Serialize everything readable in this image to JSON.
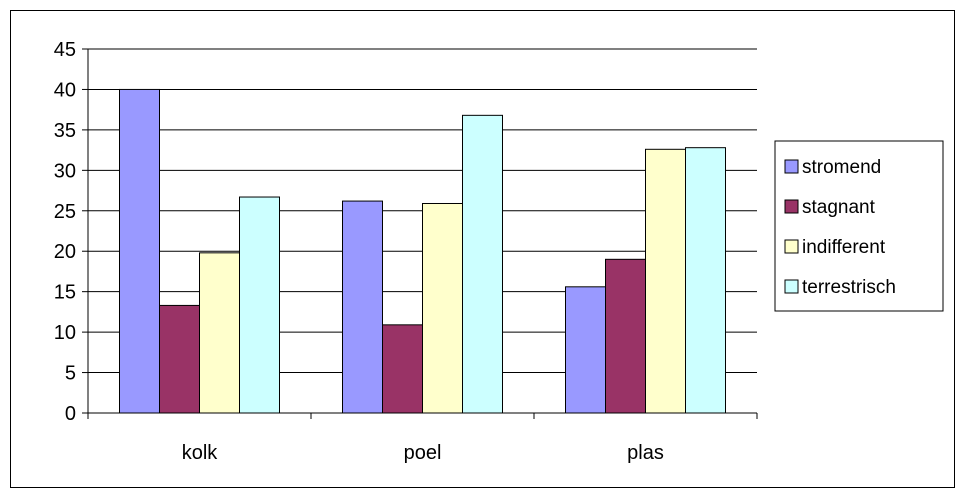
{
  "chart_data": {
    "type": "bar",
    "categories": [
      "kolk",
      "poel",
      "plas"
    ],
    "ylim": [
      0,
      45
    ],
    "y_ticks": [
      0,
      5,
      10,
      15,
      20,
      25,
      30,
      35,
      40,
      45
    ],
    "gridlines": true,
    "legend_position": "right",
    "series": [
      {
        "name": "stromend",
        "color": "#9999ff",
        "values": [
          40,
          26.2,
          15.6
        ]
      },
      {
        "name": "stagnant",
        "color": "#993366",
        "values": [
          13.3,
          10.9,
          19
        ]
      },
      {
        "name": "indifferent",
        "color": "#ffffcc",
        "values": [
          19.8,
          25.9,
          32.6
        ]
      },
      {
        "name": "terrestrisch",
        "color": "#ccffff",
        "values": [
          26.7,
          36.8,
          32.8
        ]
      }
    ]
  }
}
